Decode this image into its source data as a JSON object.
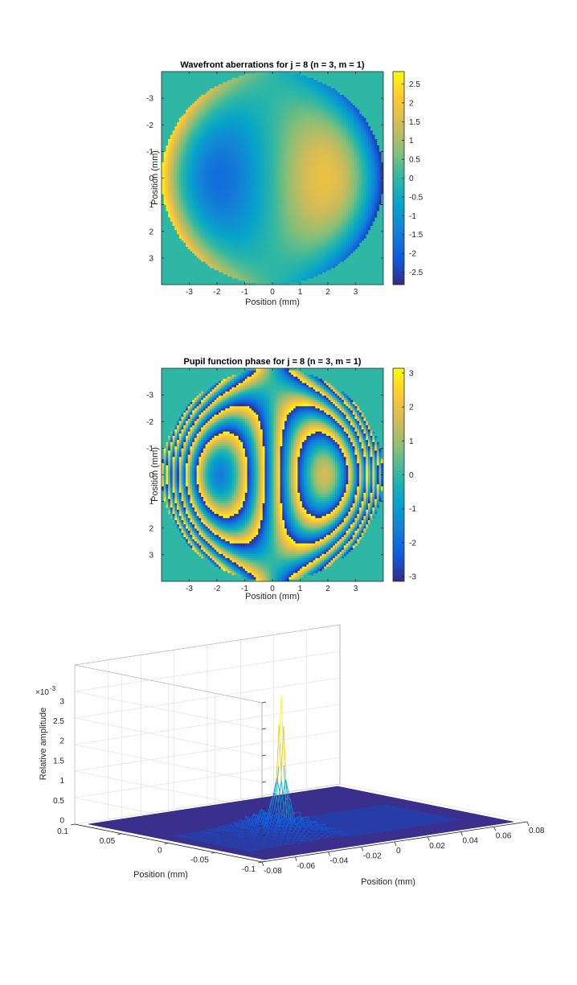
{
  "chart_data": [
    {
      "type": "heatmap",
      "title": "Wavefront aberrations for j = 8 (n = 3, m = 1)",
      "xlabel": "Position (mm)",
      "ylabel": "Position (mm)",
      "xlim": [
        -4,
        4
      ],
      "ylim": [
        -4,
        4
      ],
      "xticks": [
        "-3",
        "-2",
        "-1",
        "0",
        "1",
        "2",
        "3"
      ],
      "yticks": [
        "-3",
        "-2",
        "-1",
        "0",
        "1",
        "2",
        "3"
      ],
      "colorbar_range": [
        -2.83,
        2.83
      ],
      "colorbar_ticks": [
        "2.5",
        "2",
        "1.5",
        "1",
        "0.5",
        "0",
        "-0.5",
        "-1",
        "-1.5",
        "-2",
        "-2.5"
      ],
      "colormap": "parula",
      "pupil_radius_mm": 4
    },
    {
      "type": "heatmap",
      "title": "Pupil function phase for j = 8 (n = 3, m = 1)",
      "xlabel": "Position (mm)",
      "ylabel": "Position (mm)",
      "xlim": [
        -4,
        4
      ],
      "ylim": [
        -4,
        4
      ],
      "xticks": [
        "-3",
        "-2",
        "-1",
        "0",
        "1",
        "2",
        "3"
      ],
      "yticks": [
        "-3",
        "-2",
        "-1",
        "0",
        "1",
        "2",
        "3"
      ],
      "colorbar_range": [
        -3.14,
        3.14
      ],
      "colorbar_ticks": [
        "3",
        "2",
        "1",
        "0",
        "-1",
        "-2",
        "-3"
      ],
      "colormap": "parula",
      "pupil_radius_mm": 4
    },
    {
      "type": "surface",
      "title": "",
      "xlabel": "Position (mm)",
      "ylabel": "Position (mm)",
      "zlabel": "Relative amplitude",
      "zlim": [
        0,
        0.003
      ],
      "z_exponent_label": "×10",
      "z_exponent_power": "-3",
      "xticks": [
        "-0.08",
        "-0.06",
        "-0.04",
        "-0.02",
        "0",
        "0.02",
        "0.04",
        "0.06",
        "0.08"
      ],
      "yticks": [
        "0.1",
        "0.05",
        "0",
        "-0.05",
        "-0.1"
      ],
      "zticks": [
        "0",
        "0.5",
        "1",
        "1.5",
        "2",
        "2.5",
        "3"
      ],
      "peak_value": 0.00245,
      "grid": true
    }
  ]
}
